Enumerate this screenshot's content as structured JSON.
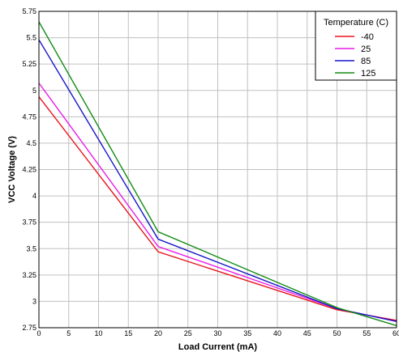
{
  "chart_data": {
    "type": "line",
    "xlabel": "Load Current (mA)",
    "ylabel": "VCC Voltage (V)",
    "xlim": [
      0,
      60
    ],
    "ylim": [
      2.75,
      5.75
    ],
    "xticks": [
      "0",
      "5",
      "10",
      "15",
      "20",
      "25",
      "30",
      "35",
      "40",
      "45",
      "50",
      "55",
      "60"
    ],
    "yticks": [
      "2.75",
      "3",
      "3.25",
      "3.5",
      "3.75",
      "4",
      "4.25",
      "4.5",
      "4.75",
      "5",
      "5.25",
      "5.5",
      "5.75"
    ],
    "grid": true,
    "legend": {
      "title": "Temperature (C)",
      "position": "top-right"
    },
    "x": [
      0,
      20,
      50,
      60
    ],
    "series": [
      {
        "name": "-40",
        "color": "#e8141c",
        "values": [
          4.94,
          3.47,
          2.92,
          2.82
        ]
      },
      {
        "name": "25",
        "color": "#e81ce8",
        "values": [
          5.07,
          3.52,
          2.93,
          2.81
        ]
      },
      {
        "name": "85",
        "color": "#1414c8",
        "values": [
          5.48,
          3.59,
          2.93,
          2.81
        ]
      },
      {
        "name": "125",
        "color": "#148c14",
        "values": [
          5.65,
          3.66,
          2.94,
          2.77
        ]
      }
    ]
  }
}
